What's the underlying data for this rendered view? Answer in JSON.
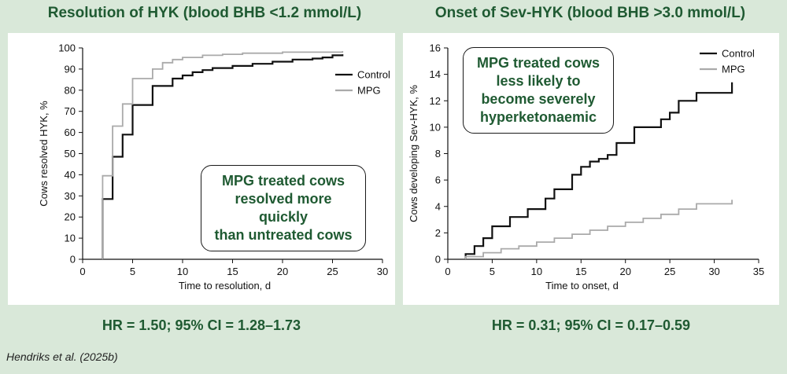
{
  "citation": "Hendriks et al. (2025b)",
  "chart_data": [
    {
      "type": "line",
      "step": true,
      "title": "Resolution of HYK (blood BHB <1.2 mmol/L)",
      "xlabel": "Time to resolution, d",
      "ylabel": "Cows resolved HYK, %",
      "xlim": [
        0,
        30
      ],
      "ylim": [
        0,
        100
      ],
      "xticks": [
        0,
        5,
        10,
        15,
        20,
        25,
        30
      ],
      "yticks": [
        0,
        10,
        20,
        30,
        40,
        50,
        60,
        70,
        80,
        90,
        100
      ],
      "legend_position": "right",
      "callout": [
        "MPG treated cows",
        "resolved more quickly",
        "than untreated cows"
      ],
      "footer": "HR = 1.50; 95% CI = 1.28–1.73",
      "series": [
        {
          "name": "Control",
          "color": "#111111",
          "x": [
            2,
            3,
            4,
            5,
            7,
            9,
            10,
            11,
            12,
            13,
            15,
            17,
            19,
            21,
            23,
            24,
            25,
            26
          ],
          "y": [
            28.5,
            48.5,
            59,
            73,
            82,
            85.5,
            87,
            88.5,
            89.5,
            90.5,
            91.5,
            92.5,
            93.5,
            94.5,
            95,
            95.5,
            96.5,
            97
          ]
        },
        {
          "name": "MPG",
          "color": "#aaaaaa",
          "x": [
            2,
            3,
            4,
            5,
            7,
            8,
            9,
            10,
            12,
            14,
            16,
            20,
            26
          ],
          "y": [
            39.5,
            63,
            73.5,
            85.5,
            90,
            93,
            94.5,
            95.5,
            96.5,
            97,
            97.5,
            98,
            98.5
          ]
        }
      ]
    },
    {
      "type": "line",
      "step": true,
      "title": "Onset of Sev-HYK (blood BHB >3.0 mmol/L)",
      "xlabel": "Time to onset, d",
      "ylabel": "Cows developing Sev-HYK, %",
      "xlim": [
        0,
        35
      ],
      "ylim": [
        0,
        16
      ],
      "xticks": [
        0,
        5,
        10,
        15,
        20,
        25,
        30,
        35
      ],
      "yticks": [
        0,
        2,
        4,
        6,
        8,
        10,
        12,
        14,
        16
      ],
      "legend_position": "top-right",
      "callout": [
        "MPG treated cows",
        "less likely to",
        "become severely",
        "hyperketonaemic"
      ],
      "footer": "HR = 0.31; 95% CI = 0.17–0.59",
      "series": [
        {
          "name": "Control",
          "color": "#111111",
          "x": [
            2,
            3,
            4,
            5,
            7,
            9,
            11,
            12,
            14,
            15,
            16,
            17,
            18,
            19,
            21,
            24,
            25,
            26,
            28,
            32
          ],
          "y": [
            0.4,
            1.0,
            1.6,
            2.5,
            3.2,
            3.8,
            4.6,
            5.3,
            6.4,
            7.0,
            7.4,
            7.6,
            7.9,
            8.8,
            10.0,
            10.6,
            11.1,
            12.0,
            12.6,
            13.4
          ]
        },
        {
          "name": "MPG",
          "color": "#aaaaaa",
          "x": [
            2,
            4,
            6,
            8,
            10,
            12,
            14,
            16,
            18,
            20,
            22,
            24,
            26,
            28,
            32
          ],
          "y": [
            0.2,
            0.5,
            0.8,
            1.0,
            1.3,
            1.6,
            1.9,
            2.2,
            2.5,
            2.8,
            3.1,
            3.4,
            3.8,
            4.2,
            4.5
          ]
        }
      ]
    }
  ]
}
